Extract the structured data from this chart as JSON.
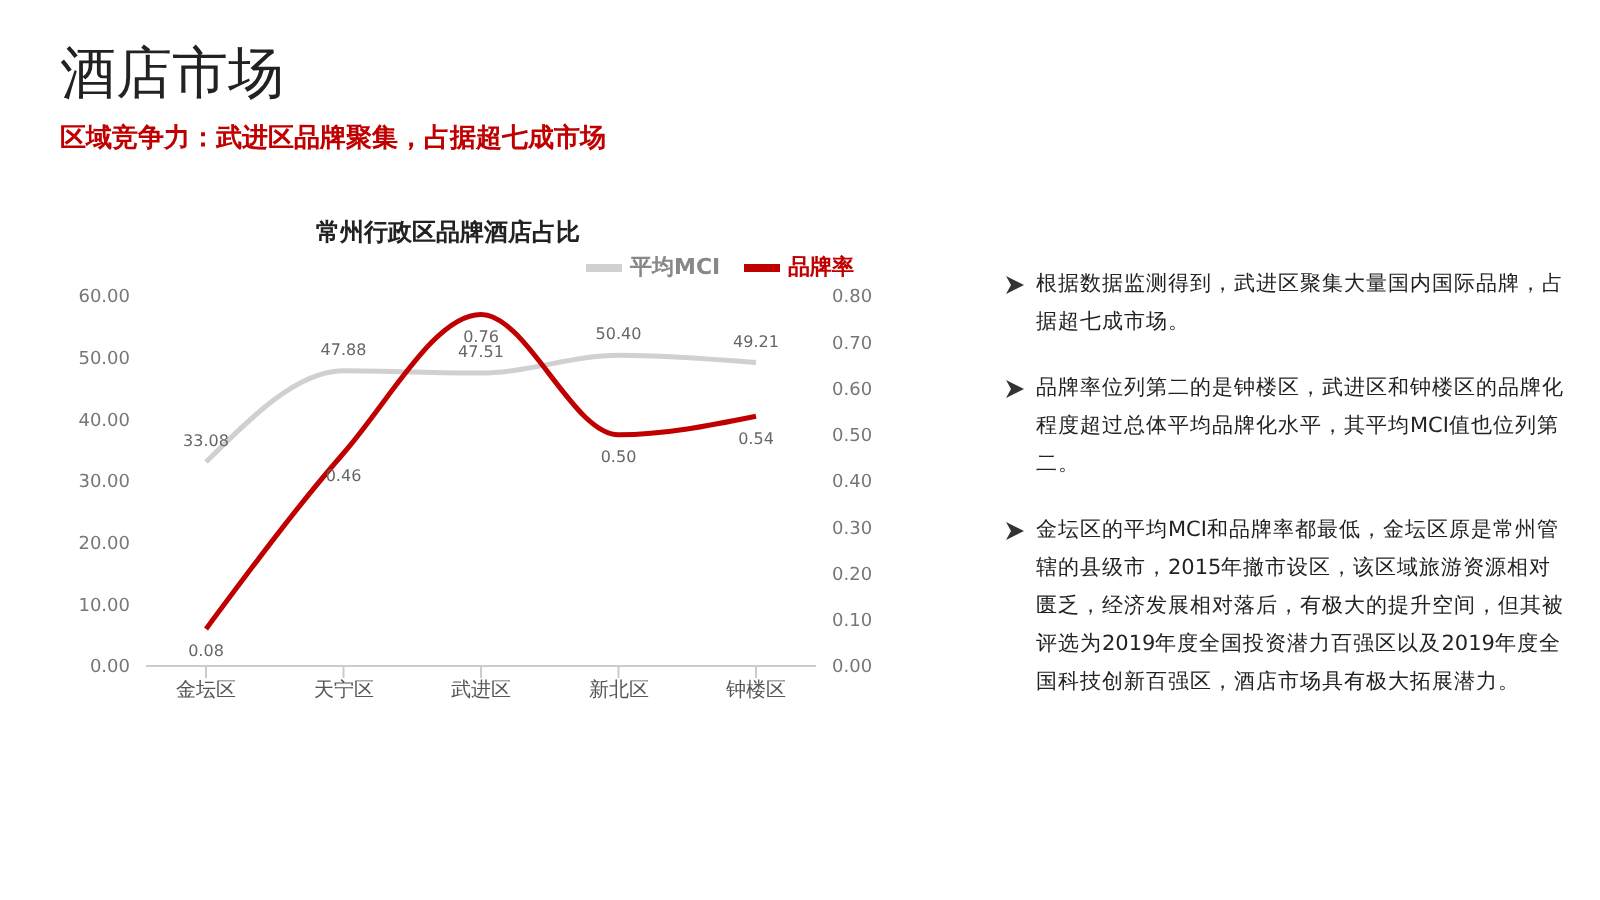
{
  "chart_data": {
    "type": "line",
    "title": "常州行政区品牌酒店占比",
    "categories": [
      "金坛区",
      "天宁区",
      "武进区",
      "新北区",
      "钟楼区"
    ],
    "series": [
      {
        "name": "平均MCI",
        "color": "#d0d0d0",
        "values": [
          33.08,
          47.88,
          47.51,
          50.4,
          49.21
        ],
        "value_labels": [
          "33.08",
          "47.88",
          "47.51",
          "50.40",
          "49.21"
        ]
      },
      {
        "name": "品牌率",
        "color": "#c00000",
        "axis": "y2",
        "values": [
          0.08,
          0.46,
          0.76,
          0.5,
          0.54
        ],
        "value_labels": [
          "0.08",
          "0.46",
          "0.76",
          "0.50",
          "0.54"
        ]
      }
    ],
    "ylim": [
      0,
      60
    ],
    "yticks": [
      {
        "value": 0,
        "label": "0.00"
      },
      {
        "value": 10,
        "label": "10.00"
      },
      {
        "value": 20,
        "label": "20.00"
      },
      {
        "value": 30,
        "label": "30.00"
      },
      {
        "value": 40,
        "label": "40.00"
      },
      {
        "value": 50,
        "label": "50.00"
      },
      {
        "value": 60,
        "label": "60.00"
      }
    ],
    "y2lim": [
      0,
      0.8
    ],
    "y2ticks": [
      {
        "value": 0,
        "label": "0.00"
      },
      {
        "value": 0.1,
        "label": "0.10"
      },
      {
        "value": 0.2,
        "label": "0.20"
      },
      {
        "value": 0.3,
        "label": "0.30"
      },
      {
        "value": 0.4,
        "label": "0.40"
      },
      {
        "value": 0.5,
        "label": "0.50"
      },
      {
        "value": 0.6,
        "label": "0.60"
      },
      {
        "value": 0.7,
        "label": "0.70"
      },
      {
        "value": 0.8,
        "label": "0.80"
      }
    ],
    "grid": false,
    "legend": "top right",
    "marker": "none",
    "line_style": "solid",
    "annotations": [
      "酒店市场",
      "区域竞争力：武进区品牌聚集，占据超七成市场",
      "根据数据监测得到，武进区聚集大量国内国际品牌，占据超七成市场。",
      "品牌率位列第二的是钟楼区，武进区和钟楼区的品牌化程度超过总体平均品牌化水平，其平均MCI值也位列第二。",
      "金坛区的平均MCI和品牌率都最低，金坛区原是常州管辖的县级市，2015年撤市设区，该区域旅游资源相对匮乏，经济发展相对落后，有极大的提升空间，但其被评选为2019年度全国投资潜力百强区以及2019年度全国科技创新百强区，酒店市场具有极大拓展潜力。"
    ]
  }
}
